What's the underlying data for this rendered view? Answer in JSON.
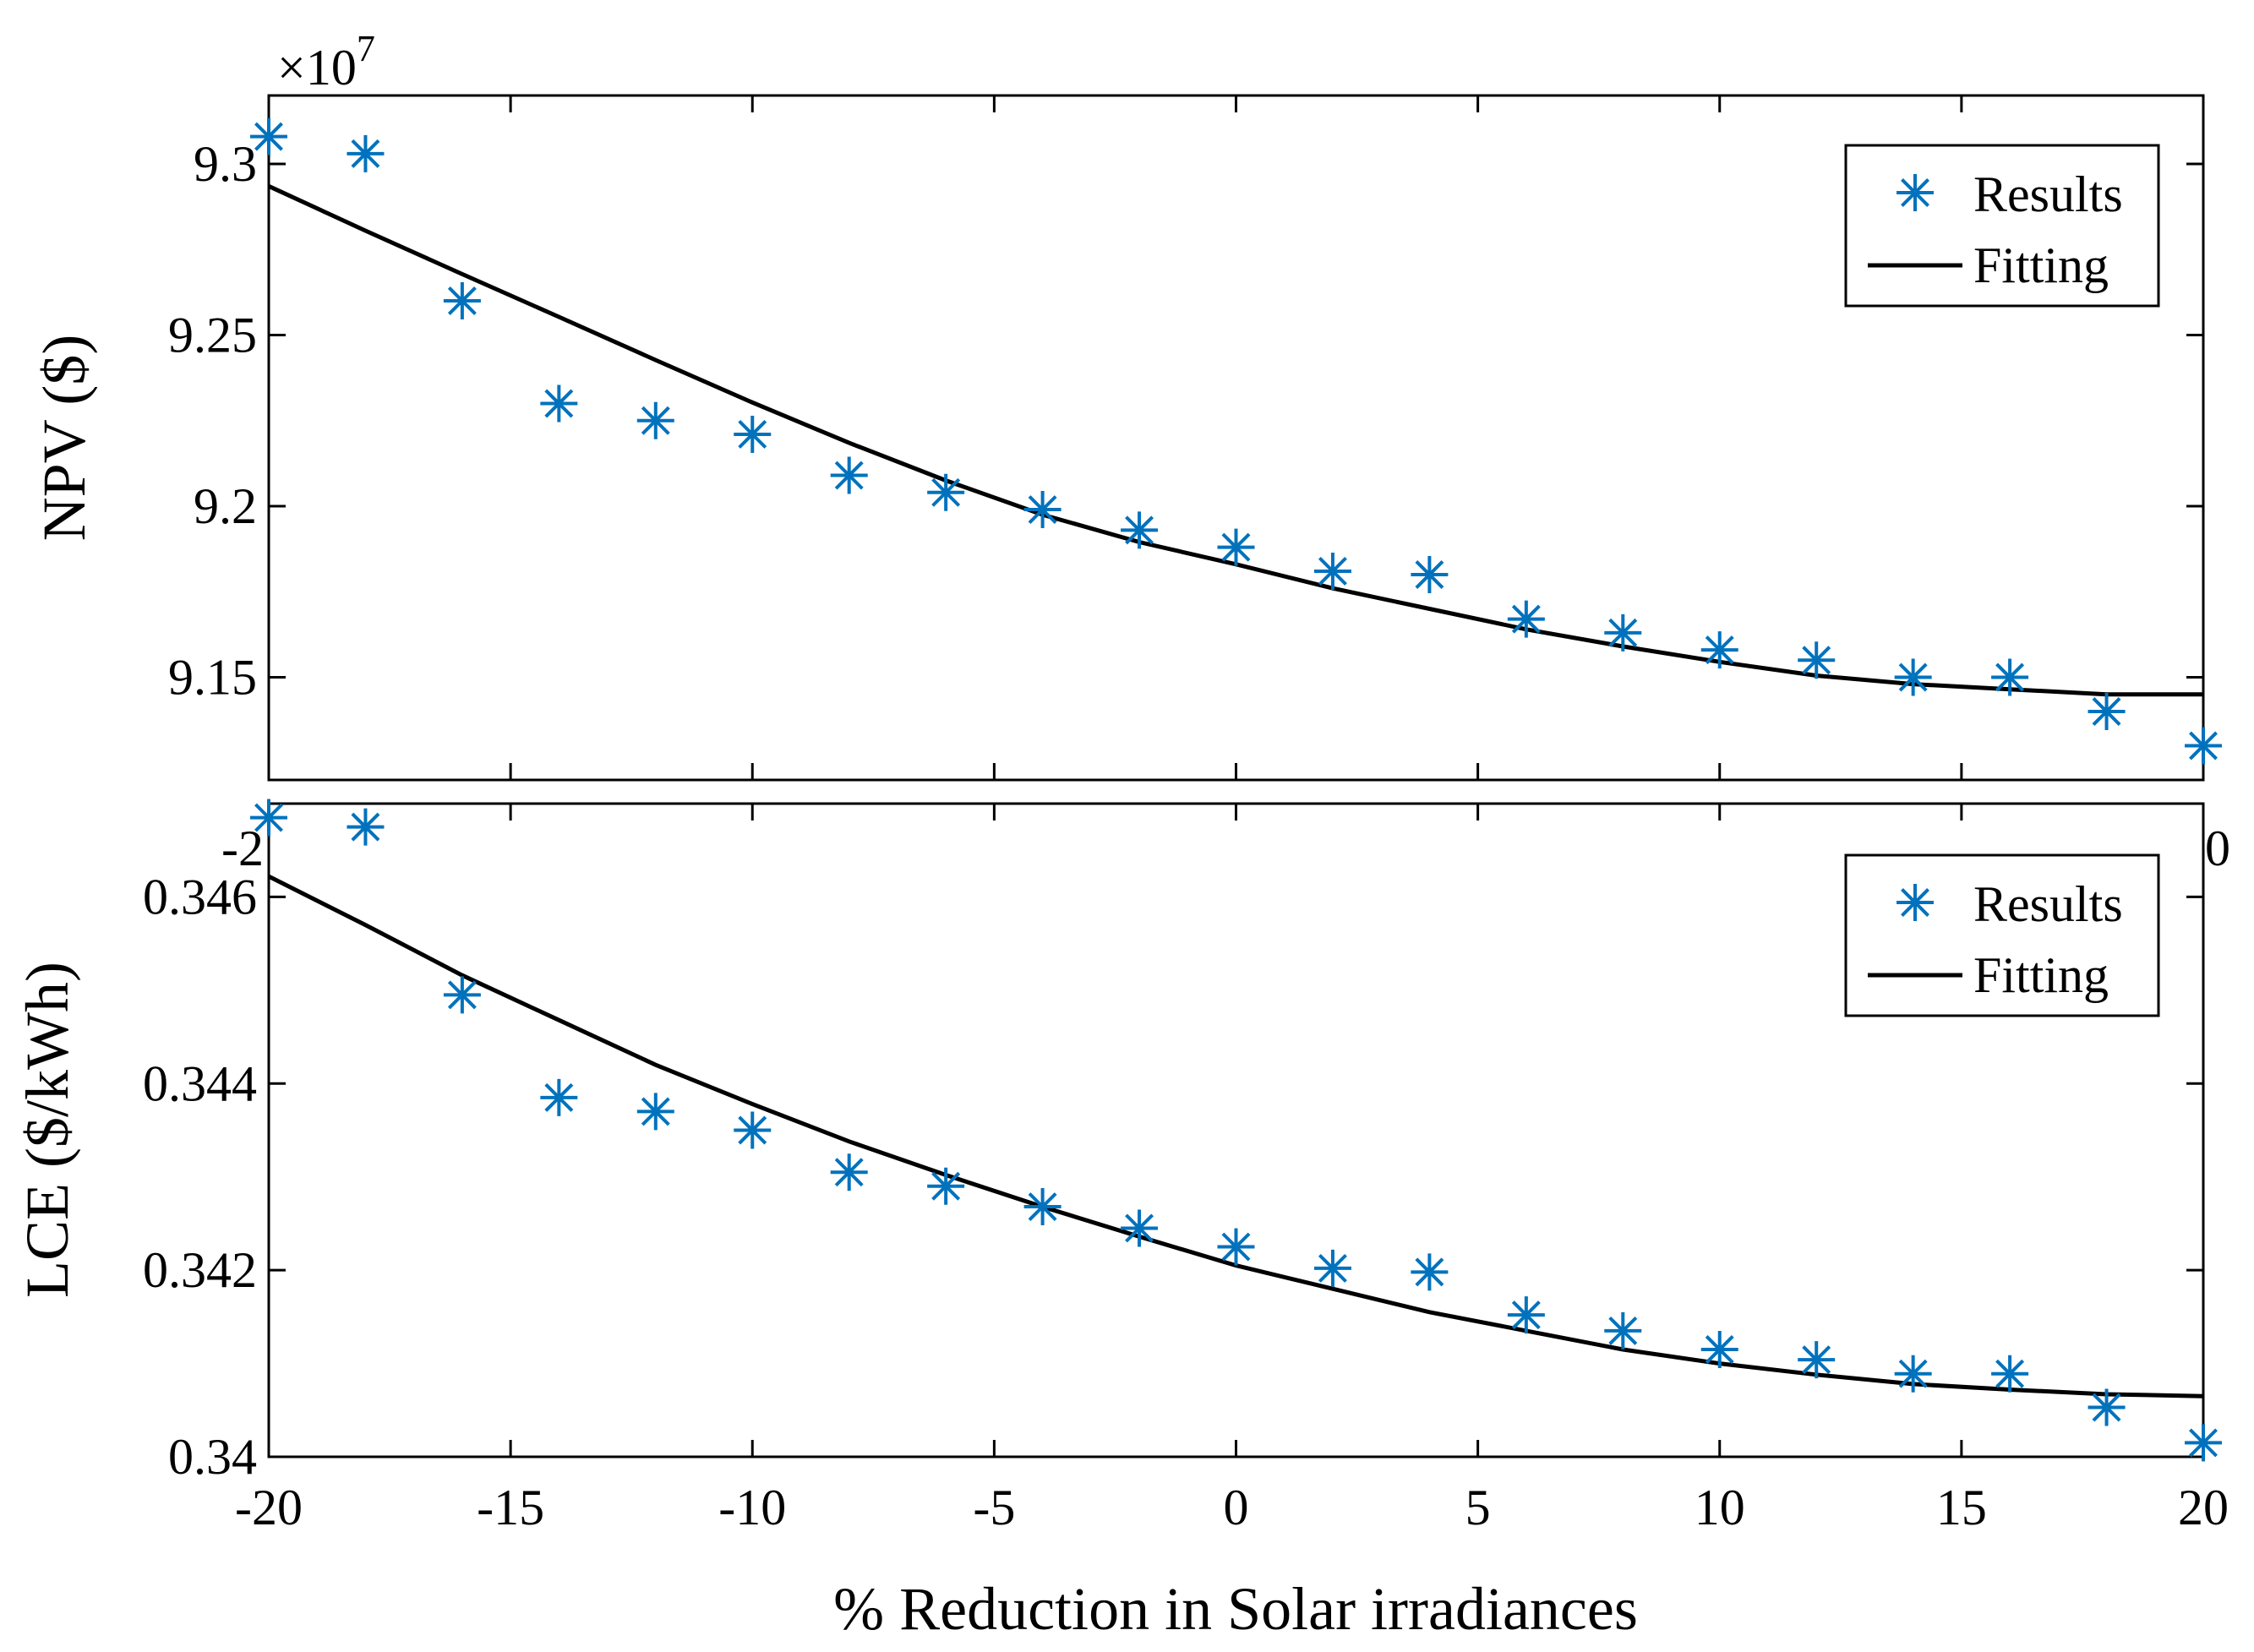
{
  "chart_data": [
    {
      "type": "scatter",
      "panel": "top",
      "title": "",
      "xlabel": "",
      "ylabel": "NPV ($)",
      "exponent_label": "×10",
      "exponent_power": "7",
      "xlim": [
        -20,
        20
      ],
      "ylim": [
        9.12,
        9.32
      ],
      "yticks": [
        9.15,
        9.2,
        9.25,
        9.3
      ],
      "ytick_labels": [
        "9.15",
        "9.2",
        "9.25",
        "9.3"
      ],
      "xticks": [
        -20,
        -15,
        -10,
        -5,
        0,
        5,
        10,
        15,
        20
      ],
      "visible_xtick_fragments": [
        "-2",
        "0"
      ],
      "grid": false,
      "legend_position": "top-right",
      "series": [
        {
          "name": "Results",
          "style": "markers",
          "marker": "asterisk",
          "color": "#0072BD",
          "x": [
            -20,
            -18,
            -16,
            -14,
            -12,
            -10,
            -8,
            -6,
            -4,
            -2,
            0,
            2,
            4,
            6,
            8,
            10,
            12,
            14,
            16,
            18,
            20
          ],
          "y": [
            9.308,
            9.303,
            9.26,
            9.23,
            9.225,
            9.221,
            9.209,
            9.204,
            9.199,
            9.193,
            9.188,
            9.181,
            9.18,
            9.167,
            9.163,
            9.158,
            9.155,
            9.15,
            9.15,
            9.14,
            9.13
          ]
        },
        {
          "name": "Fitting",
          "style": "line",
          "color": "#000000",
          "x": [
            -20,
            -18,
            -16,
            -14,
            -12,
            -10,
            -8,
            -6,
            -4,
            -2,
            0,
            2,
            4,
            6,
            8,
            10,
            12,
            14,
            16,
            18,
            20
          ],
          "y": [
            9.2935,
            9.2805,
            9.2678,
            9.2553,
            9.2427,
            9.2303,
            9.2185,
            9.2075,
            9.1975,
            9.1895,
            9.183,
            9.176,
            9.17,
            9.164,
            9.159,
            9.1545,
            9.1505,
            9.148,
            9.1465,
            9.145,
            9.145
          ]
        }
      ]
    },
    {
      "type": "scatter",
      "panel": "bottom",
      "title": "",
      "xlabel": "% Reduction in Solar irradiances",
      "ylabel": "LCE ($/kWh)",
      "xlim": [
        -20,
        20
      ],
      "ylim": [
        0.34,
        0.347
      ],
      "yticks": [
        0.34,
        0.342,
        0.344,
        0.346
      ],
      "ytick_labels": [
        "0.34",
        "0.342",
        "0.344",
        "0.346"
      ],
      "xticks": [
        -20,
        -15,
        -10,
        -5,
        0,
        5,
        10,
        15,
        20
      ],
      "xtick_labels": [
        "-20",
        "-15",
        "-10",
        "-5",
        "0",
        "5",
        "10",
        "15",
        "20"
      ],
      "grid": false,
      "legend_position": "top-right",
      "series": [
        {
          "name": "Results",
          "style": "markers",
          "marker": "asterisk",
          "color": "#0072BD",
          "x": [
            -20,
            -18,
            -16,
            -14,
            -12,
            -10,
            -8,
            -6,
            -4,
            -2,
            0,
            2,
            4,
            6,
            8,
            10,
            12,
            14,
            16,
            18,
            20
          ],
          "y": [
            0.34685,
            0.34675,
            0.34495,
            0.34385,
            0.3437,
            0.3435,
            0.34305,
            0.3429,
            0.34268,
            0.34245,
            0.34225,
            0.34202,
            0.34198,
            0.34152,
            0.34135,
            0.34115,
            0.34104,
            0.34089,
            0.34089,
            0.34053,
            0.34015
          ]
        },
        {
          "name": "Fitting",
          "style": "line",
          "color": "#000000",
          "x": [
            -20,
            -18,
            -16,
            -14,
            -12,
            -10,
            -8,
            -6,
            -4,
            -2,
            0,
            2,
            4,
            6,
            8,
            10,
            12,
            14,
            16,
            18,
            20
          ],
          "y": [
            0.34622,
            0.3457,
            0.34516,
            0.34468,
            0.3442,
            0.34378,
            0.34338,
            0.34302,
            0.34268,
            0.34236,
            0.34205,
            0.3418,
            0.34155,
            0.34135,
            0.34115,
            0.341,
            0.34088,
            0.34078,
            0.34072,
            0.34067,
            0.34065
          ]
        }
      ]
    }
  ]
}
